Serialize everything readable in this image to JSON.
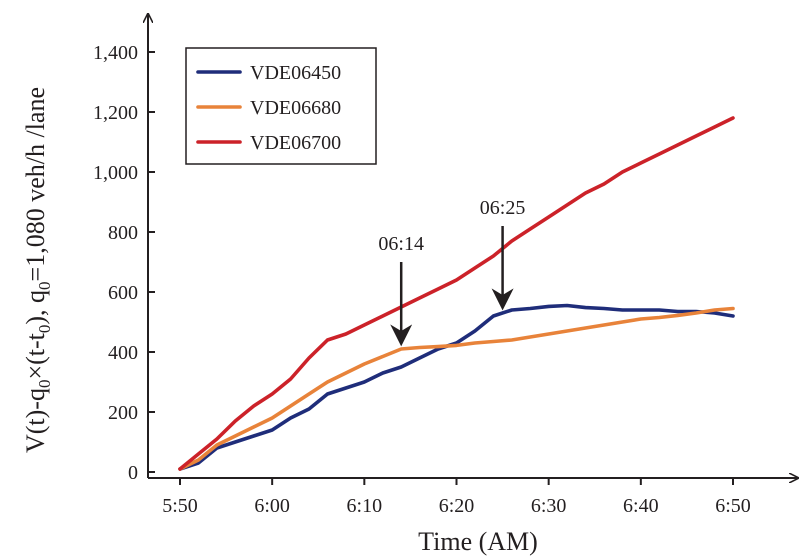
{
  "chart_data": {
    "type": "line",
    "xlabel": "Time (AM)",
    "ylabel": "V(t)-q0×(t-t0), q0=1,080 veh/h /lane",
    "ylabel_parts": {
      "a": "V(t)-q",
      "sub1": "0",
      "b": "×(t-t",
      "sub2": "0",
      "c": "), q",
      "sub3": "0",
      "d": "=1,080 veh/h /lane"
    },
    "x_unit": "minutes after 5:50 AM",
    "xlim": [
      0,
      60
    ],
    "ylim": [
      0,
      1400
    ],
    "x_ticks": [
      {
        "value": 0,
        "label": "5:50"
      },
      {
        "value": 10,
        "label": "6:00"
      },
      {
        "value": 20,
        "label": "6:10"
      },
      {
        "value": 30,
        "label": "6:20"
      },
      {
        "value": 40,
        "label": "6:30"
      },
      {
        "value": 50,
        "label": "6:40"
      },
      {
        "value": 60,
        "label": "6:50"
      }
    ],
    "y_ticks": [
      {
        "value": 0,
        "label": "0"
      },
      {
        "value": 200,
        "label": "200"
      },
      {
        "value": 400,
        "label": "400"
      },
      {
        "value": 600,
        "label": "600"
      },
      {
        "value": 800,
        "label": "800"
      },
      {
        "value": 1000,
        "label": "1,000"
      },
      {
        "value": 1200,
        "label": "1,200"
      },
      {
        "value": 1400,
        "label": "1,400"
      }
    ],
    "grid": false,
    "legend_position": "top-left",
    "series": [
      {
        "name": "VDE06450",
        "color": "#1f2d7a",
        "points": [
          [
            0,
            10
          ],
          [
            2,
            30
          ],
          [
            4,
            80
          ],
          [
            6,
            100
          ],
          [
            8,
            120
          ],
          [
            10,
            140
          ],
          [
            12,
            180
          ],
          [
            14,
            210
          ],
          [
            16,
            260
          ],
          [
            18,
            280
          ],
          [
            20,
            300
          ],
          [
            22,
            330
          ],
          [
            24,
            350
          ],
          [
            26,
            380
          ],
          [
            28,
            410
          ],
          [
            30,
            430
          ],
          [
            32,
            470
          ],
          [
            34,
            520
          ],
          [
            36,
            540
          ],
          [
            38,
            545
          ],
          [
            40,
            552
          ],
          [
            42,
            555
          ],
          [
            44,
            548
          ],
          [
            46,
            545
          ],
          [
            48,
            540
          ],
          [
            50,
            540
          ],
          [
            52,
            540
          ],
          [
            54,
            535
          ],
          [
            56,
            535
          ],
          [
            58,
            530
          ],
          [
            60,
            520
          ]
        ]
      },
      {
        "name": "VDE06680",
        "color": "#e8833a",
        "points": [
          [
            0,
            10
          ],
          [
            2,
            40
          ],
          [
            4,
            90
          ],
          [
            6,
            120
          ],
          [
            8,
            150
          ],
          [
            10,
            180
          ],
          [
            12,
            220
          ],
          [
            14,
            260
          ],
          [
            16,
            300
          ],
          [
            18,
            330
          ],
          [
            20,
            360
          ],
          [
            22,
            385
          ],
          [
            24,
            410
          ],
          [
            26,
            415
          ],
          [
            28,
            418
          ],
          [
            30,
            422
          ],
          [
            32,
            430
          ],
          [
            34,
            435
          ],
          [
            36,
            440
          ],
          [
            38,
            450
          ],
          [
            40,
            460
          ],
          [
            42,
            470
          ],
          [
            44,
            480
          ],
          [
            46,
            490
          ],
          [
            48,
            500
          ],
          [
            50,
            510
          ],
          [
            52,
            515
          ],
          [
            54,
            522
          ],
          [
            56,
            530
          ],
          [
            58,
            540
          ],
          [
            60,
            545
          ]
        ]
      },
      {
        "name": "VDE06700",
        "color": "#cc2229",
        "points": [
          [
            0,
            10
          ],
          [
            2,
            60
          ],
          [
            4,
            110
          ],
          [
            6,
            170
          ],
          [
            8,
            220
          ],
          [
            10,
            260
          ],
          [
            12,
            310
          ],
          [
            14,
            380
          ],
          [
            16,
            440
          ],
          [
            18,
            460
          ],
          [
            20,
            490
          ],
          [
            22,
            520
          ],
          [
            24,
            550
          ],
          [
            26,
            580
          ],
          [
            28,
            610
          ],
          [
            30,
            640
          ],
          [
            32,
            680
          ],
          [
            34,
            720
          ],
          [
            36,
            770
          ],
          [
            38,
            810
          ],
          [
            40,
            850
          ],
          [
            42,
            890
          ],
          [
            44,
            930
          ],
          [
            46,
            960
          ],
          [
            48,
            1000
          ],
          [
            50,
            1030
          ],
          [
            52,
            1060
          ],
          [
            54,
            1090
          ],
          [
            56,
            1120
          ],
          [
            58,
            1150
          ],
          [
            60,
            1180
          ]
        ]
      }
    ],
    "annotations": [
      {
        "label": "06:14",
        "x": 24,
        "y": 420
      },
      {
        "label": "06:25",
        "x": 35,
        "y": 540
      }
    ]
  }
}
